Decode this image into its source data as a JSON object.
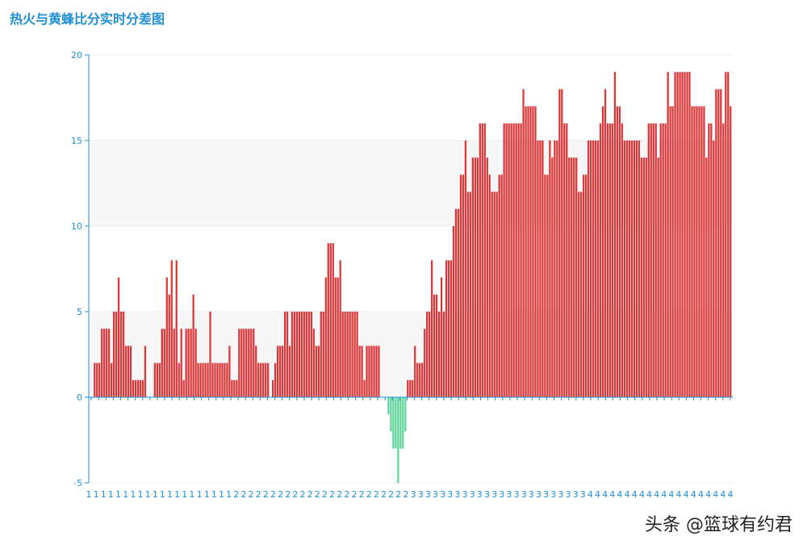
{
  "chart_data": {
    "type": "bar",
    "title": "热火与黄蜂比分实时分差图",
    "xlabel": "",
    "ylabel": "",
    "ylim": [
      -5,
      20
    ],
    "yticks": [
      -5,
      0,
      5,
      10,
      15,
      20
    ],
    "grid": true,
    "positive_color": "#d9383a",
    "negative_color": "#5ed49a",
    "x_tick_labels": [
      "1",
      "1",
      "1",
      "1",
      "1",
      "1",
      "1",
      "1",
      "1",
      "1",
      "1",
      "1",
      "1",
      "1",
      "1",
      "1",
      "1",
      "1",
      "1",
      "1",
      "2",
      "2",
      "2",
      "2",
      "2",
      "2",
      "2",
      "2",
      "2",
      "2",
      "2",
      "2",
      "2",
      "2",
      "2",
      "2",
      "2",
      "2",
      "2",
      "2",
      "2",
      "2",
      "2",
      "2",
      "3",
      "3",
      "3",
      "3",
      "3",
      "3",
      "3",
      "3",
      "3",
      "3",
      "3",
      "3",
      "3",
      "3",
      "3",
      "3",
      "3",
      "3",
      "3",
      "3",
      "3",
      "3",
      "3",
      "3",
      "4",
      "4",
      "4",
      "4",
      "4",
      "4",
      "4",
      "4",
      "4",
      "4",
      "4",
      "4",
      "4",
      "4",
      "4",
      "4",
      "4",
      "4",
      "4",
      "4"
    ],
    "values": [
      2,
      2,
      2,
      4,
      4,
      4,
      4,
      2,
      5,
      5,
      7,
      5,
      5,
      3,
      3,
      3,
      1,
      1,
      1,
      1,
      1,
      3,
      0,
      0,
      0,
      2,
      2,
      2,
      4,
      4,
      7,
      6,
      8,
      4,
      8,
      2,
      4,
      1,
      4,
      4,
      4,
      6,
      4,
      2,
      2,
      2,
      2,
      2,
      5,
      2,
      2,
      2,
      2,
      2,
      2,
      2,
      3,
      1,
      1,
      1,
      4,
      4,
      4,
      4,
      4,
      4,
      4,
      3,
      2,
      2,
      2,
      2,
      2,
      0,
      1,
      2,
      3,
      3,
      3,
      5,
      5,
      3,
      5,
      5,
      5,
      5,
      5,
      5,
      5,
      5,
      5,
      4,
      3,
      3,
      5,
      5,
      7,
      9,
      9,
      9,
      7,
      7,
      8,
      5,
      5,
      5,
      5,
      5,
      5,
      5,
      3,
      3,
      1,
      3,
      3,
      3,
      3,
      3,
      3,
      0,
      0,
      0,
      -1,
      -2,
      -3,
      -3,
      -5,
      -3,
      -3,
      -2,
      1,
      1,
      1,
      3,
      2,
      2,
      2,
      4,
      5,
      5,
      8,
      6,
      6,
      5,
      7,
      5,
      8,
      8,
      8,
      10,
      11,
      11,
      13,
      13,
      15,
      12,
      12,
      14,
      14,
      14,
      16,
      16,
      16,
      14,
      13,
      12,
      12,
      12,
      13,
      13,
      16,
      16,
      16,
      16,
      16,
      16,
      16,
      16,
      18,
      17,
      17,
      17,
      17,
      17,
      15,
      15,
      15,
      13,
      13,
      15,
      14,
      15,
      15,
      18,
      18,
      16,
      16,
      14,
      14,
      14,
      14,
      12,
      12,
      13,
      13,
      15,
      15,
      15,
      15,
      15,
      16,
      17,
      18,
      16,
      16,
      16,
      19,
      17,
      17,
      16,
      15,
      15,
      15,
      15,
      15,
      15,
      15,
      14,
      14,
      14,
      16,
      16,
      16,
      16,
      14,
      16,
      16,
      16,
      19,
      17,
      17,
      19,
      19,
      19,
      19,
      19,
      19,
      19,
      17,
      17,
      17,
      17,
      17,
      17,
      14,
      16,
      16,
      15,
      18,
      18,
      18,
      16,
      19,
      19,
      17
    ]
  },
  "footer": {
    "credit": "头条 @篮球有约君"
  }
}
